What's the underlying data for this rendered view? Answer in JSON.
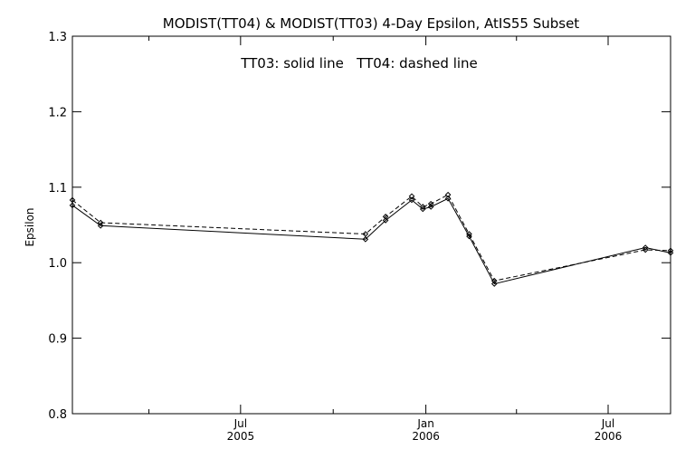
{
  "chart_data": {
    "type": "line",
    "title": "MODIST(TT04) & MODIST(TT03) 4-Day Epsilon, AtIS55 Subset",
    "annotation": "TT03: solid line   TT04: dashed line",
    "ylabel": "Epsilon",
    "xlabel": "",
    "ylim": [
      0.8,
      1.3
    ],
    "yticks": [
      0.8,
      0.9,
      1.0,
      1.1,
      1.2,
      1.3
    ],
    "ytick_labels": [
      "0.8",
      "0.9",
      "1.0",
      "1.1",
      "1.2",
      "1.3"
    ],
    "xlim": [
      "2005-01-15",
      "2006-09-01"
    ],
    "xticks_major": [
      {
        "date": "2005-07-01",
        "label_top": "Jul",
        "label_bottom": "2005"
      },
      {
        "date": "2006-01-01",
        "label_top": "Jan",
        "label_bottom": "2006"
      },
      {
        "date": "2006-07-01",
        "label_top": "Jul",
        "label_bottom": "2006"
      }
    ],
    "xticks_minor": [
      "2005-04-01",
      "2005-10-01",
      "2006-04-01"
    ],
    "grid": false,
    "series": [
      {
        "name": "TT03",
        "style": "solid",
        "points": [
          {
            "x": "2005-01-15",
            "y": 1.076
          },
          {
            "x": "2005-02-12",
            "y": 1.049
          },
          {
            "x": "2005-11-02",
            "y": 1.031
          },
          {
            "x": "2005-11-22",
            "y": 1.056
          },
          {
            "x": "2005-12-18",
            "y": 1.083
          },
          {
            "x": "2005-12-29",
            "y": 1.071
          },
          {
            "x": "2006-01-06",
            "y": 1.074
          },
          {
            "x": "2006-01-23",
            "y": 1.085
          },
          {
            "x": "2006-02-13",
            "y": 1.035
          },
          {
            "x": "2006-03-10",
            "y": 0.972
          },
          {
            "x": "2006-08-07",
            "y": 1.02
          },
          {
            "x": "2006-09-01",
            "y": 1.013
          }
        ]
      },
      {
        "name": "TT04",
        "style": "dashed",
        "points": [
          {
            "x": "2005-01-15",
            "y": 1.083
          },
          {
            "x": "2005-02-12",
            "y": 1.053
          },
          {
            "x": "2005-11-02",
            "y": 1.038
          },
          {
            "x": "2005-11-22",
            "y": 1.061
          },
          {
            "x": "2005-12-18",
            "y": 1.088
          },
          {
            "x": "2005-12-29",
            "y": 1.074
          },
          {
            "x": "2006-01-06",
            "y": 1.078
          },
          {
            "x": "2006-01-23",
            "y": 1.09
          },
          {
            "x": "2006-02-13",
            "y": 1.038
          },
          {
            "x": "2006-03-10",
            "y": 0.976
          },
          {
            "x": "2006-08-07",
            "y": 1.017
          },
          {
            "x": "2006-09-01",
            "y": 1.016
          }
        ]
      }
    ]
  }
}
